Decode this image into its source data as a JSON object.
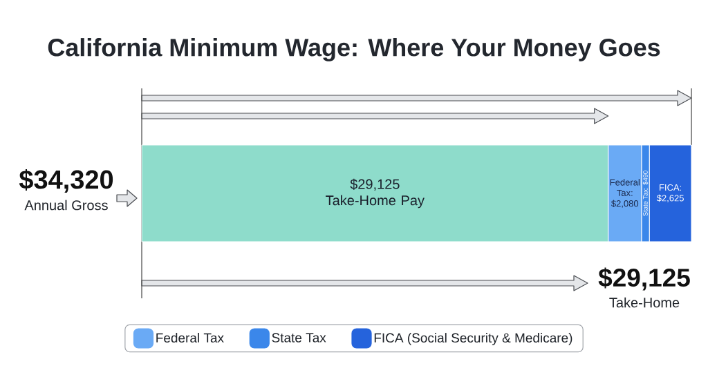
{
  "chart_data": {
    "type": "bar",
    "title": "California Minimum Wage: Where Your Money Goes",
    "orientation": "horizontal",
    "stacked": true,
    "categories": [
      null
    ],
    "legend": "bottom",
    "series": [
      {
        "color": "#8edccb",
        "values": [
          29125
        ],
        "value_labels": [
          "$29,125 Take-Home Pay"
        ]
      },
      {
        "name": "Federal Tax",
        "color": "#6aaaf5",
        "values": [
          2080
        ],
        "value_labels": [
          "Federal Tax: $2,080"
        ]
      },
      {
        "name": "State Tax",
        "color": "#3b87ea",
        "values": [
          490
        ],
        "value_labels": [
          "State Tax: $490"
        ]
      },
      {
        "name": "FICA (Social Security & Medicare)",
        "color": "#2563dc",
        "values": [
          2625
        ],
        "value_labels": [
          "FICA: $2,625"
        ]
      }
    ],
    "annotations": [
      "$34,320",
      "Annual Gross",
      "$29,125",
      "Take-Home"
    ]
  }
}
